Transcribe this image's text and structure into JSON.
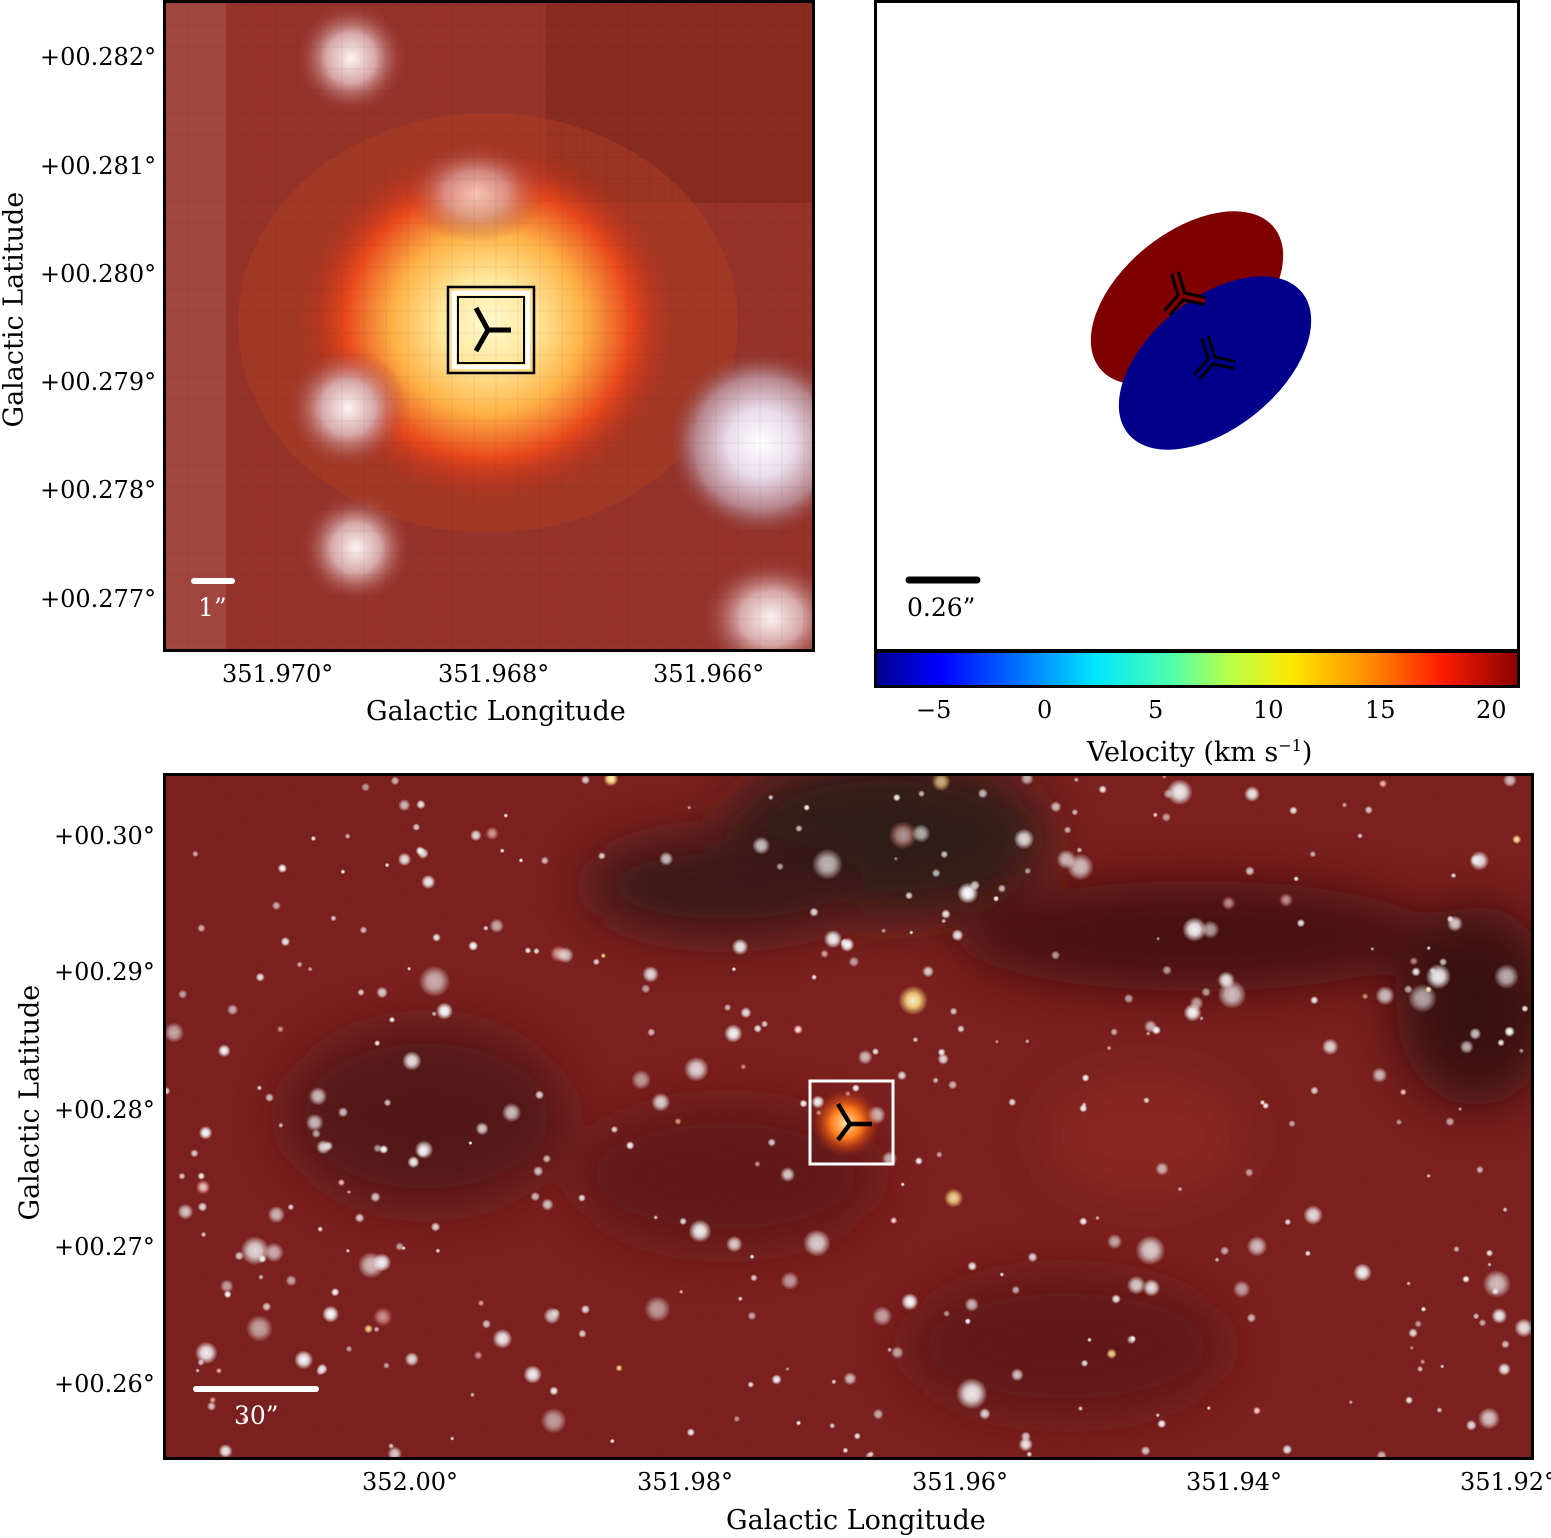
{
  "panel_a": {
    "y_ticks": [
      "+00.282°",
      "+00.281°",
      "+00.280°",
      "+00.279°",
      "+00.278°",
      "+00.277°"
    ],
    "x_ticks": [
      "351.970°",
      "351.968°",
      "351.966°"
    ],
    "x_label": "Galactic Longitude",
    "y_label": "Galactic Latitude",
    "scale_bar": "1”"
  },
  "panel_b": {
    "scale_bar": "0.26”",
    "components": [
      {
        "color": "#7f0000",
        "marker": "tri-marker"
      },
      {
        "color": "#00008b",
        "marker": "tri-marker"
      }
    ],
    "colorbar": {
      "ticks": [
        "−5",
        "0",
        "5",
        "10",
        "15",
        "20"
      ],
      "label_main": "Velocity (km s",
      "label_sup": "−1",
      "label_end": ")",
      "colormap": "jet",
      "range": [
        -7,
        21
      ]
    }
  },
  "panel_c": {
    "y_ticks": [
      "+00.30°",
      "+00.29°",
      "+00.28°",
      "+00.27°",
      "+00.26°"
    ],
    "x_ticks": [
      "352.00°",
      "351.98°",
      "351.96°",
      "351.94°",
      "351.92°"
    ],
    "x_label": "Galactic Longitude",
    "y_label": "Galactic Latitude",
    "scale_bar": "30”"
  },
  "colors": {
    "background_red": "#7a1a18",
    "dark_lane": "#2a1212",
    "accent_orange": "#ff7a1a"
  }
}
